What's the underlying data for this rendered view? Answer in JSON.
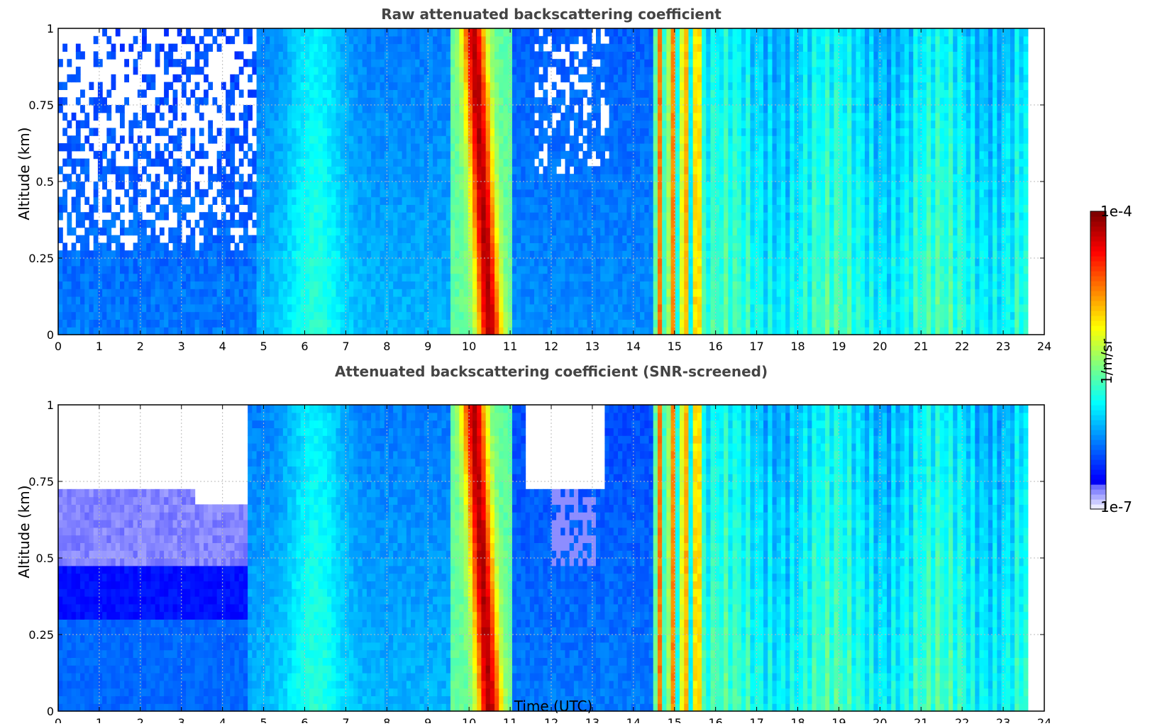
{
  "chart_data": [
    {
      "type": "heatmap",
      "title": "Raw attenuated backscattering coefficient",
      "ylabel": "Altitude (km)",
      "xlabel": "",
      "xlim": [
        0,
        24
      ],
      "ylim": [
        0,
        1
      ],
      "xticks": [
        0,
        1,
        2,
        3,
        4,
        5,
        6,
        7,
        8,
        9,
        10,
        11,
        12,
        13,
        14,
        15,
        16,
        17,
        18,
        19,
        20,
        21,
        22,
        23,
        24
      ],
      "yticks": [
        0,
        0.25,
        0.5,
        0.75,
        1
      ],
      "ytick_labels": [
        "0",
        "0.25",
        "0.5",
        "0.75",
        "1"
      ],
      "grid": true,
      "data_end_time": 23.6,
      "colormap": "jet",
      "log_scale": true,
      "segments": [
        {
          "start": 0.0,
          "end": 4.8,
          "profile": "noisy_clear_air"
        },
        {
          "start": 4.8,
          "end": 9.5,
          "profile": "moderate_aerosol"
        },
        {
          "start": 9.5,
          "end": 11.0,
          "profile": "dense_layer"
        },
        {
          "start": 11.0,
          "end": 14.4,
          "profile": "moderate_with_noise"
        },
        {
          "start": 14.4,
          "end": 15.6,
          "profile": "streaky_layer"
        },
        {
          "start": 15.6,
          "end": 23.6,
          "profile": "striped_aerosol"
        }
      ]
    },
    {
      "type": "heatmap",
      "title": "Attenuated backscattering coefficient (SNR-screened)",
      "ylabel": "Altitude (km)",
      "xlabel": "Time (UTC)",
      "xlim": [
        0,
        24
      ],
      "ylim": [
        0,
        1
      ],
      "xticks": [
        0,
        1,
        2,
        3,
        4,
        5,
        6,
        7,
        8,
        9,
        10,
        11,
        12,
        13,
        14,
        15,
        16,
        17,
        18,
        19,
        20,
        21,
        22,
        23,
        24
      ],
      "yticks": [
        0,
        0.25,
        0.5,
        0.75,
        1
      ],
      "ytick_labels": [
        "0",
        "0.25",
        "0.5",
        "0.75",
        "1"
      ],
      "grid": true,
      "data_end_time": 23.6,
      "colormap": "jet",
      "log_scale": true,
      "segments": [
        {
          "start": 0.0,
          "end": 4.6,
          "profile": "screened_clear_air"
        },
        {
          "start": 4.6,
          "end": 9.5,
          "profile": "moderate_aerosol"
        },
        {
          "start": 9.5,
          "end": 11.0,
          "profile": "dense_layer"
        },
        {
          "start": 11.0,
          "end": 14.4,
          "profile": "screened_moderate"
        },
        {
          "start": 14.4,
          "end": 15.6,
          "profile": "streaky_layer"
        },
        {
          "start": 15.6,
          "end": 23.6,
          "profile": "striped_aerosol"
        }
      ]
    }
  ],
  "colorbar": {
    "unit": "1/m/sr",
    "max_label": "1e-4",
    "min_label": "1e-7",
    "range": [
      1e-07,
      0.0001
    ],
    "log_scale": true,
    "colormap": "jet"
  }
}
